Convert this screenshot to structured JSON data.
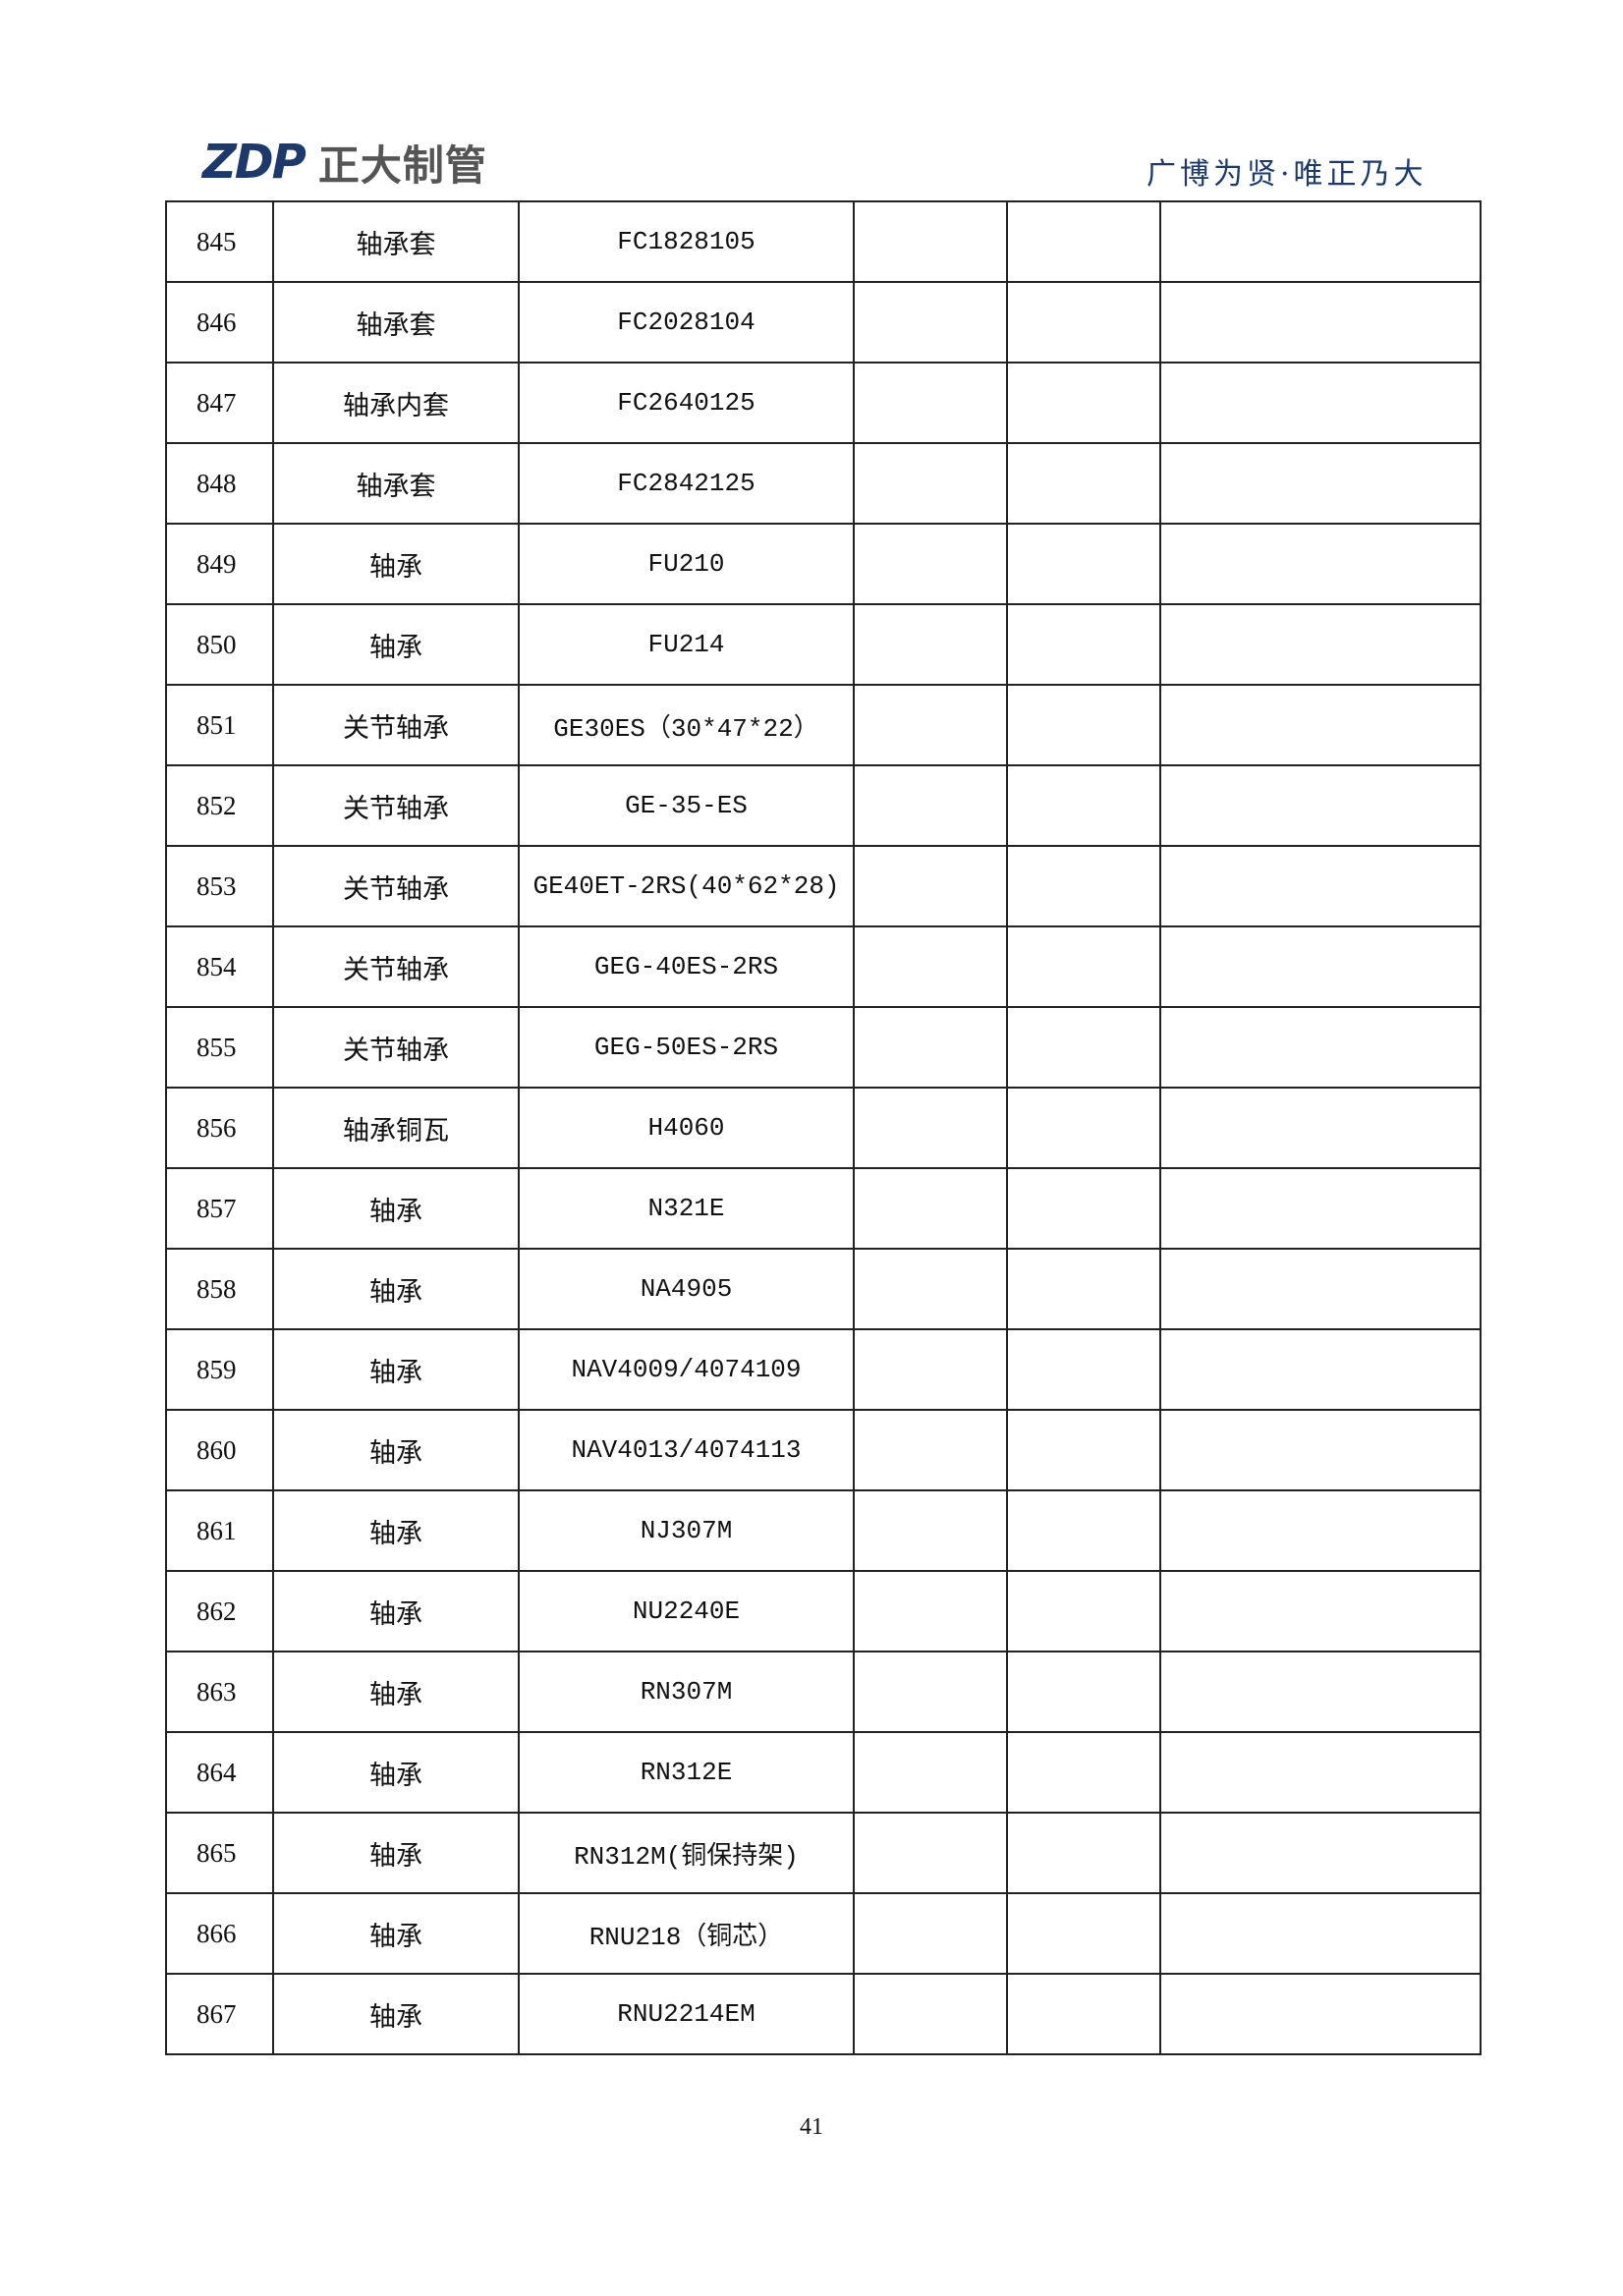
{
  "header": {
    "logo_mark": "ZDP",
    "logo_text": "正大制管",
    "slogan": "广博为贤·唯正乃大"
  },
  "table": {
    "rows": [
      {
        "no": "845",
        "name": "轴承套",
        "code": "FC1828105"
      },
      {
        "no": "846",
        "name": "轴承套",
        "code": "FC2028104"
      },
      {
        "no": "847",
        "name": "轴承内套",
        "code": "FC2640125"
      },
      {
        "no": "848",
        "name": "轴承套",
        "code": "FC2842125"
      },
      {
        "no": "849",
        "name": "轴承",
        "code": "FU210"
      },
      {
        "no": "850",
        "name": "轴承",
        "code": "FU214"
      },
      {
        "no": "851",
        "name": "关节轴承",
        "code": "GE30ES（30*47*22）"
      },
      {
        "no": "852",
        "name": "关节轴承",
        "code": "GE-35-ES"
      },
      {
        "no": "853",
        "name": "关节轴承",
        "code": "GE40ET-2RS(40*62*28)"
      },
      {
        "no": "854",
        "name": "关节轴承",
        "code": "GEG-40ES-2RS"
      },
      {
        "no": "855",
        "name": "关节轴承",
        "code": "GEG-50ES-2RS"
      },
      {
        "no": "856",
        "name": "轴承铜瓦",
        "code": "H4060"
      },
      {
        "no": "857",
        "name": "轴承",
        "code": "N321E"
      },
      {
        "no": "858",
        "name": "轴承",
        "code": "NA4905"
      },
      {
        "no": "859",
        "name": "轴承",
        "code": "NAV4009/4074109"
      },
      {
        "no": "860",
        "name": "轴承",
        "code": "NAV4013/4074113"
      },
      {
        "no": "861",
        "name": "轴承",
        "code": "NJ307M"
      },
      {
        "no": "862",
        "name": "轴承",
        "code": "NU2240E"
      },
      {
        "no": "863",
        "name": "轴承",
        "code": "RN307M"
      },
      {
        "no": "864",
        "name": "轴承",
        "code": "RN312E"
      },
      {
        "no": "865",
        "name": "轴承",
        "code": "RN312M(铜保持架)"
      },
      {
        "no": "866",
        "name": "轴承",
        "code": "RNU218（铜芯）"
      },
      {
        "no": "867",
        "name": "轴承",
        "code": "RNU2214EM"
      }
    ]
  },
  "footer": {
    "page_number": "41"
  }
}
